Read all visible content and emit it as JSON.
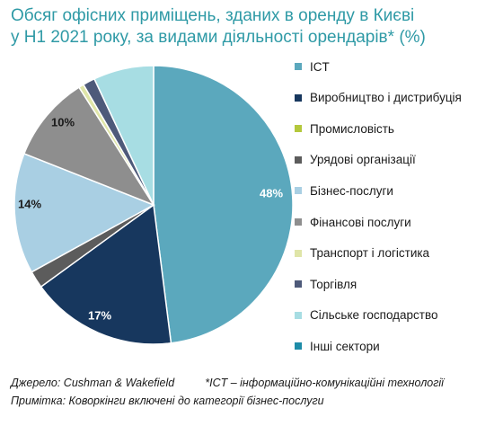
{
  "title_lines": [
    "Обсяг офісних приміщень, зданих в оренду в Києві",
    "у H1 2021 року, за видами діяльності орендарів* (%)"
  ],
  "chart_data": {
    "type": "pie",
    "title": "Обсяг офісних приміщень, зданих в оренду в Києві у H1 2021 року, за видами діяльності орендарів* (%)",
    "legend_position": "right",
    "slices": [
      {
        "label": "ICT",
        "value": 48,
        "data_label": "48%",
        "color": "#5ba8bd"
      },
      {
        "label": "Виробництво і дистрибуція",
        "value": 17,
        "data_label": "17%",
        "color": "#17375e"
      },
      {
        "label": "Промисловість",
        "value": 0,
        "data_label": "",
        "color": "#b4c83c"
      },
      {
        "label": "Урядові організації",
        "value": 2,
        "data_label": "",
        "color": "#5c5c5c"
      },
      {
        "label": "Бізнес-послуги",
        "value": 14,
        "data_label": "14%",
        "color": "#a9cfe3"
      },
      {
        "label": "Фінансові послуги",
        "value": 10,
        "data_label": "10%",
        "color": "#8e8e8e"
      },
      {
        "label": "Транспорт і логістика",
        "value": 0.6,
        "data_label": "",
        "color": "#dfe5a8"
      },
      {
        "label": "Торгівля",
        "value": 1.4,
        "data_label": "",
        "color": "#4e5a7a"
      },
      {
        "label": "Сільське господарство",
        "value": 7,
        "data_label": "",
        "color": "#a7dde3"
      },
      {
        "label": "Інші сектори",
        "value": 0,
        "data_label": "",
        "color": "#1e8ca8"
      }
    ]
  },
  "footer": {
    "source": "Джерело: Cushman & Wakefield",
    "ict_note": "*ICT – інформаційно-комунікаційні технології",
    "note": "Примітка: Коворкінги включені до категорії бізнес-послуги"
  }
}
